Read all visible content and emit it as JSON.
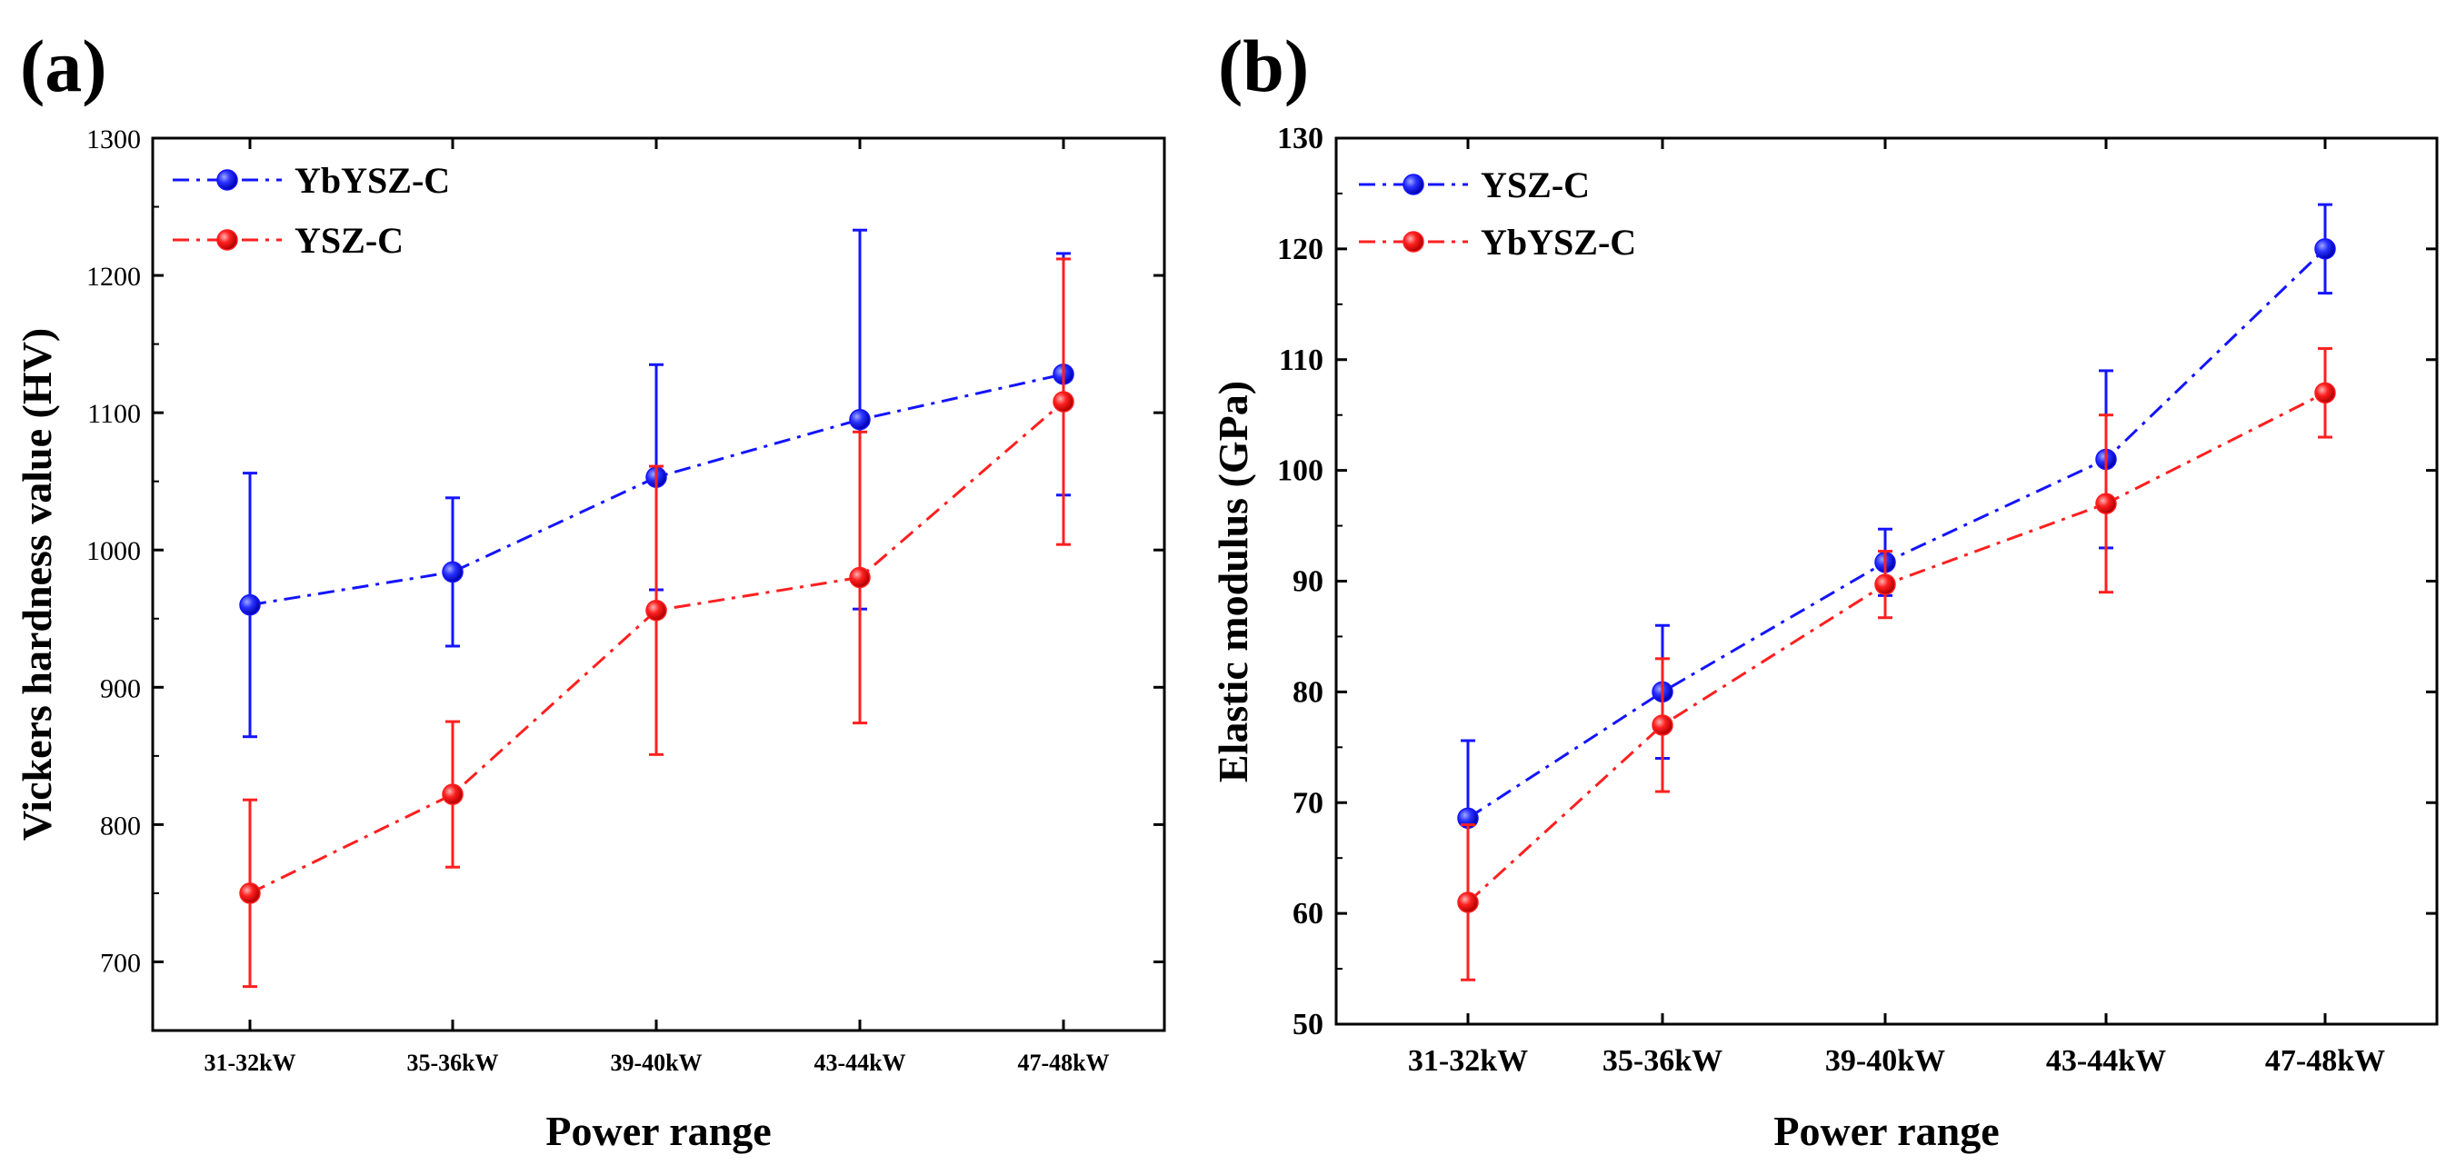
{
  "colors": {
    "blue": "#1414ff",
    "red": "#ff1f1f",
    "axis": "#000000"
  },
  "chart_data": [
    {
      "panel": "(a)",
      "type": "line",
      "xlabel": "Power range",
      "ylabel": "Vickers hardness value (HV)",
      "categories": [
        "31-32kW",
        "35-36kW",
        "39-40kW",
        "43-44kW",
        "47-48kW"
      ],
      "ylim": [
        650,
        1300
      ],
      "yticks": [
        700,
        800,
        900,
        1000,
        1100,
        1200,
        1300
      ],
      "legend_position": "top-left",
      "series": [
        {
          "name": "YbYSZ-C",
          "color": "blue",
          "values": [
            960,
            984,
            1053,
            1095,
            1128
          ],
          "err_low": [
            864,
            930,
            971,
            957,
            1040
          ],
          "err_high": [
            1056,
            1038,
            1135,
            1233,
            1216
          ]
        },
        {
          "name": "YSZ-C",
          "color": "red",
          "values": [
            750,
            822,
            956,
            980,
            1108
          ],
          "err_low": [
            682,
            769,
            851,
            874,
            1004
          ],
          "err_high": [
            818,
            875,
            1061,
            1086,
            1212
          ]
        }
      ]
    },
    {
      "panel": "(b)",
      "type": "line",
      "xlabel": "Power range",
      "ylabel": "Elastic modulus (GPa)",
      "categories": [
        "31-32kW",
        "35-36kW",
        "39-40kW",
        "43-44kW",
        "47-48kW"
      ],
      "ylim": [
        50,
        130
      ],
      "yticks": [
        50,
        60,
        70,
        80,
        90,
        100,
        110,
        120,
        130
      ],
      "legend_position": "top-left",
      "series": [
        {
          "name": "YSZ-C",
          "color": "blue",
          "values": [
            68.6,
            80,
            91.7,
            101,
            120
          ],
          "err_low": [
            61.5,
            74,
            88.7,
            93,
            116
          ],
          "err_high": [
            75.6,
            86,
            94.7,
            109,
            124
          ]
        },
        {
          "name": "YbYSZ-C",
          "color": "red",
          "values": [
            61,
            77,
            89.7,
            97,
            107
          ],
          "err_low": [
            54,
            71,
            86.7,
            89,
            103
          ],
          "err_high": [
            68,
            83,
            92.7,
            105,
            111
          ]
        }
      ]
    }
  ]
}
